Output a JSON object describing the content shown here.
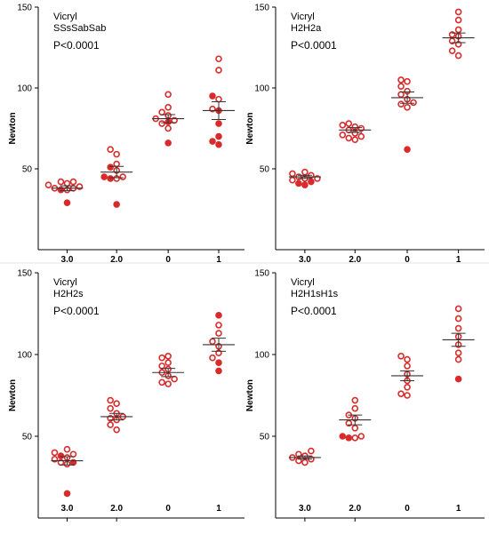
{
  "chart_data": [
    {
      "type": "scatter",
      "title_line1": "Vicryl",
      "title_line2": "SSsSabSab",
      "pvalue": "P<0.0001",
      "ylabel": "Newton",
      "ylim": [
        0,
        150
      ],
      "yticks": [
        "50",
        "100",
        "150"
      ],
      "categories": [
        "3.0",
        "2.0",
        "0",
        "1"
      ],
      "means": [
        38,
        48,
        81,
        86
      ],
      "sems": [
        1.5,
        3.5,
        2.5,
        5.5
      ],
      "points": [
        {
          "hollow": [
            42,
            42,
            41,
            40,
            39,
            38,
            37,
            38
          ],
          "filled": [
            29,
            37
          ]
        },
        {
          "hollow": [
            62,
            59,
            53,
            49,
            45,
            44
          ],
          "filled": [
            51,
            45,
            44,
            28
          ]
        },
        {
          "hollow": [
            96,
            88,
            85,
            83,
            81,
            80,
            78,
            75
          ],
          "filled": [
            66,
            79
          ]
        },
        {
          "hollow": [
            118,
            111,
            93,
            87
          ],
          "filled": [
            95,
            86,
            78,
            70,
            67,
            65
          ]
        }
      ]
    },
    {
      "type": "scatter",
      "title_line1": "Vicryl",
      "title_line2": "H2H2a",
      "pvalue": "P<0.0001",
      "ylabel": "Newton",
      "ylim": [
        0,
        150
      ],
      "yticks": [
        "50",
        "100",
        "150"
      ],
      "categories": [
        "3.0",
        "2.0",
        "0",
        "1"
      ],
      "means": [
        45,
        74,
        94,
        131
      ],
      "sems": [
        1,
        1.5,
        3.5,
        3
      ],
      "points": [
        {
          "hollow": [
            48,
            47,
            46,
            45,
            44,
            43,
            44
          ],
          "filled": [
            42,
            40,
            41
          ]
        },
        {
          "hollow": [
            78,
            77,
            76,
            75,
            74,
            72,
            71,
            70,
            69,
            68
          ],
          "filled": []
        },
        {
          "hollow": [
            105,
            104,
            101,
            98,
            96,
            93,
            91,
            90,
            88
          ],
          "filled": [
            62
          ]
        },
        {
          "hollow": [
            147,
            142,
            136,
            133,
            132,
            129,
            127,
            123,
            120
          ],
          "filled": []
        }
      ]
    },
    {
      "type": "scatter",
      "title_line1": "Vicryl",
      "title_line2": "H2H2s",
      "pvalue": "P<0.0001",
      "ylabel": "Newton",
      "ylim": [
        0,
        150
      ],
      "yticks": [
        "50",
        "100",
        "150"
      ],
      "categories": [
        "3.0",
        "2.0",
        "0",
        "1"
      ],
      "means": [
        35,
        62,
        89,
        106
      ],
      "sems": [
        2.5,
        2,
        2.5,
        4
      ],
      "points": [
        {
          "hollow": [
            42,
            40,
            39,
            37,
            36,
            34,
            33
          ],
          "filled": [
            38,
            34,
            15
          ]
        },
        {
          "hollow": [
            72,
            70,
            67,
            64,
            62,
            61,
            60,
            57,
            54
          ],
          "filled": []
        },
        {
          "hollow": [
            99,
            98,
            95,
            93,
            91,
            89,
            87,
            85,
            83,
            82
          ],
          "filled": []
        },
        {
          "hollow": [
            118,
            113,
            108,
            105,
            101,
            98
          ],
          "filled": [
            124,
            95,
            90
          ]
        }
      ]
    },
    {
      "type": "scatter",
      "title_line1": "Vicryl",
      "title_line2": "H2H1sH1s",
      "pvalue": "P<0.0001",
      "ylabel": "Newton",
      "ylim": [
        0,
        150
      ],
      "yticks": [
        "50",
        "100",
        "150"
      ],
      "categories": [
        "3.0",
        "2.0",
        "0",
        "1"
      ],
      "means": [
        37,
        60,
        87,
        109
      ],
      "sems": [
        1,
        3,
        3,
        4
      ],
      "points": [
        {
          "hollow": [
            41,
            39,
            38,
            37,
            36,
            35,
            34
          ],
          "filled": []
        },
        {
          "hollow": [
            72,
            67,
            63,
            61,
            58,
            55,
            50,
            49
          ],
          "filled": [
            49,
            50
          ]
        },
        {
          "hollow": [
            99,
            97,
            93,
            88,
            84,
            80,
            76,
            75
          ],
          "filled": []
        },
        {
          "hollow": [
            128,
            122,
            116,
            111,
            106,
            101,
            97
          ],
          "filled": [
            85
          ]
        }
      ]
    }
  ]
}
